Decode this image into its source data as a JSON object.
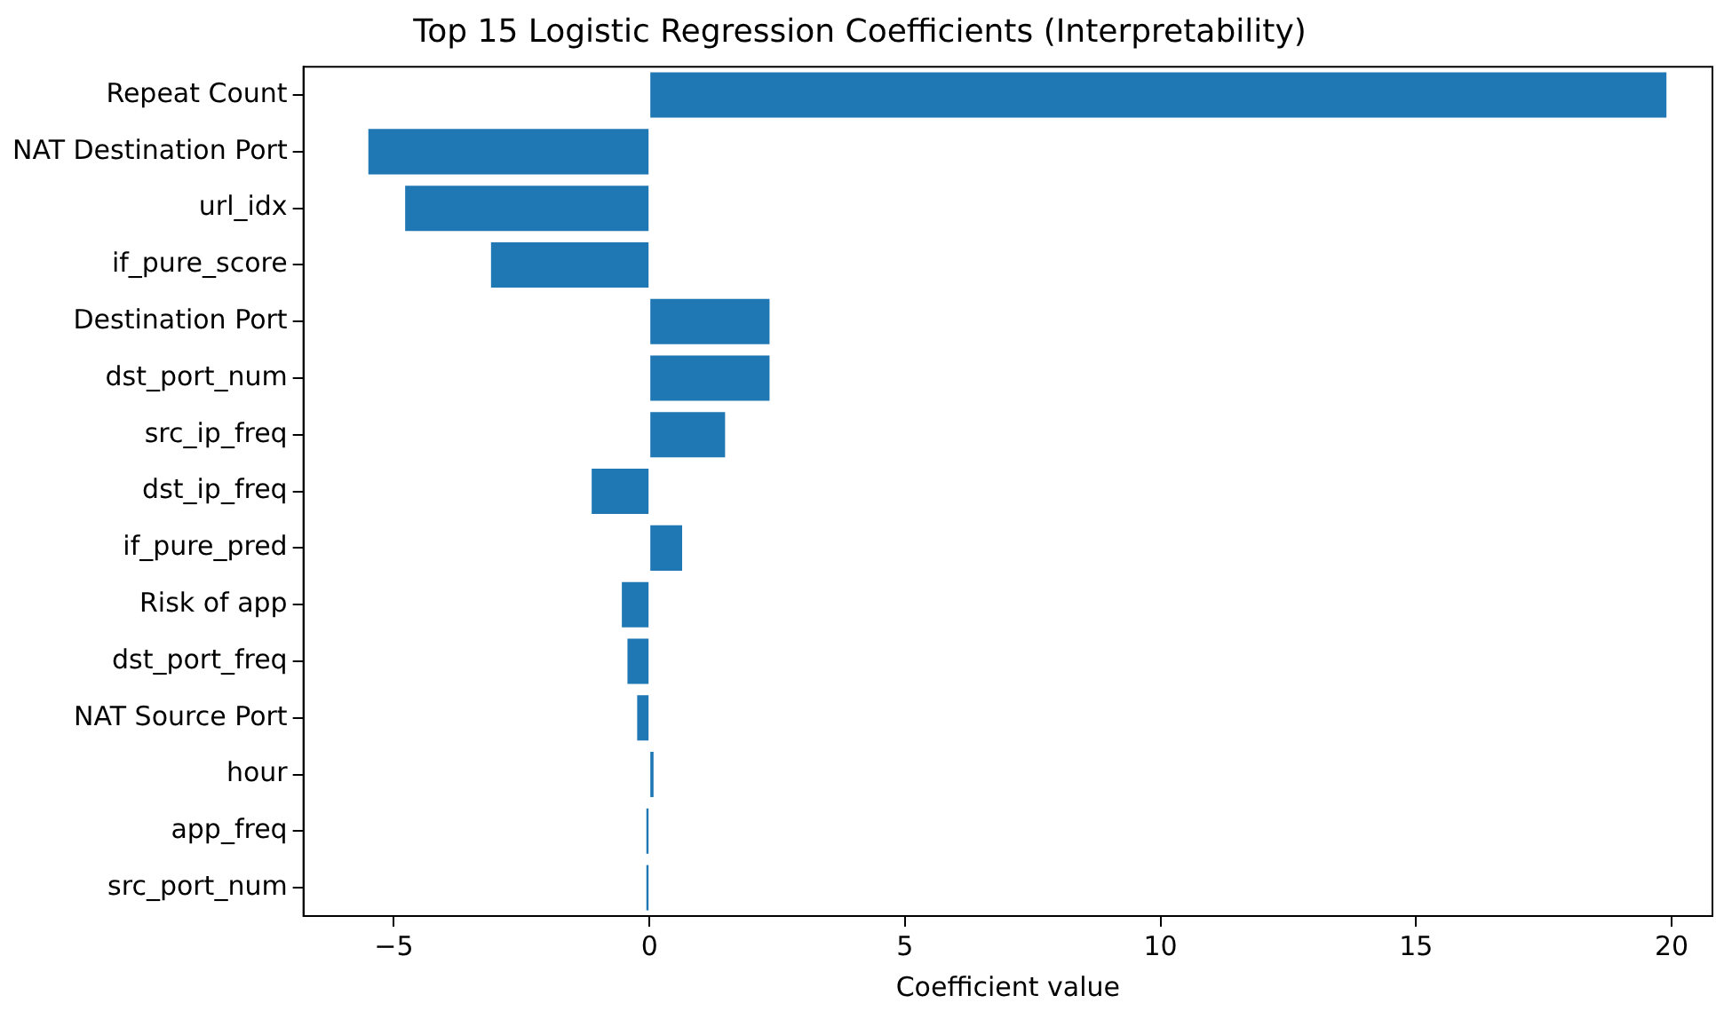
{
  "chart_data": {
    "type": "bar",
    "orientation": "horizontal",
    "title": "Top 15 Logistic Regression Coefficients (Interpretability)",
    "xlabel": "Coefficient value",
    "categories": [
      "Repeat Count",
      "NAT Destination Port",
      "url_idx",
      "if_pure_score",
      "Destination Port",
      "dst_port_num",
      "src_ip_freq",
      "dst_ip_freq",
      "if_pure_pred",
      "Risk of app",
      "dst_port_freq",
      "NAT Source Port",
      "hour",
      "app_freq",
      "src_port_num"
    ],
    "values": [
      19.9,
      -5.5,
      -4.78,
      -3.1,
      2.35,
      2.35,
      1.48,
      -1.13,
      0.64,
      -0.54,
      -0.43,
      -0.24,
      0.08,
      -0.06,
      -0.06
    ],
    "color": "#1f77b4",
    "xlim": [
      -6.77,
      20.8
    ],
    "xticks": [
      -5,
      0,
      5,
      10,
      15,
      20
    ],
    "grid": false,
    "legend": false
  }
}
